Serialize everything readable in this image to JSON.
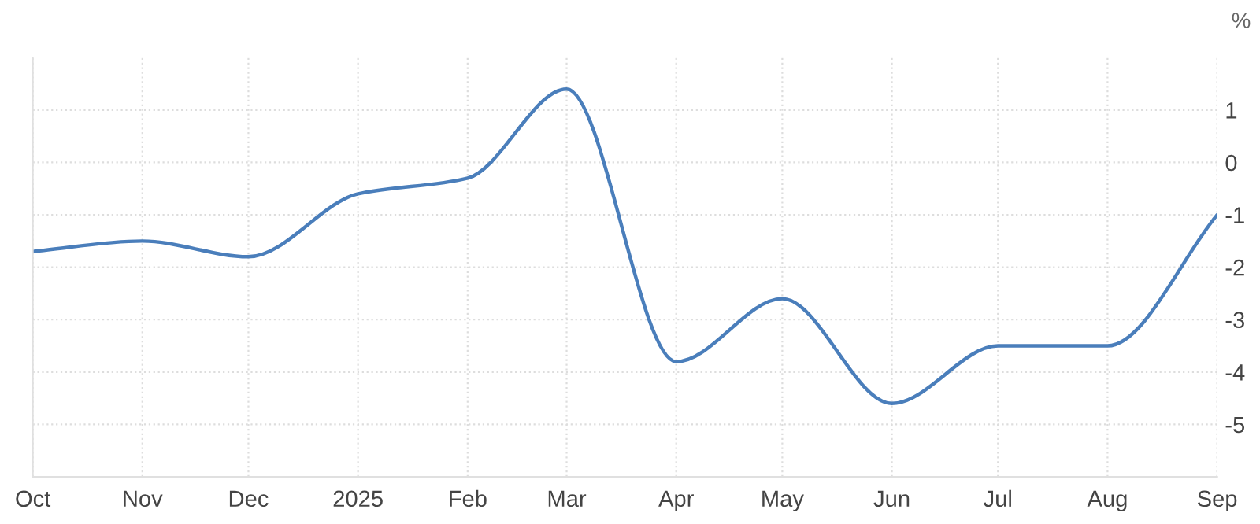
{
  "chart_data": {
    "type": "line",
    "ylabel": "%",
    "x": [
      "2024-10",
      "2024-11",
      "2024-12",
      "2025-01",
      "2025-02",
      "2025-03",
      "2025-04",
      "2025-05",
      "2025-06",
      "2025-07",
      "2025-08",
      "2025-09"
    ],
    "series": [
      {
        "color": "#4a7ebb",
        "values": [
          -1.7,
          -1.5,
          -1.8,
          -0.6,
          -0.3,
          1.4,
          -3.8,
          -2.6,
          -4.6,
          -3.5,
          -3.5,
          -1.0
        ]
      }
    ],
    "xlim": [
      "2024-10",
      "2025-09"
    ],
    "xticks": [
      {
        "value": "2024-10",
        "label": "Oct"
      },
      {
        "value": "2024-11",
        "label": "Nov"
      },
      {
        "value": "2024-12",
        "label": "Dec"
      },
      {
        "value": "2025-01",
        "label": "2025"
      },
      {
        "value": "2025-02",
        "label": "Feb"
      },
      {
        "value": "2025-03",
        "label": "Mar"
      },
      {
        "value": "2025-04",
        "label": "Apr"
      },
      {
        "value": "2025-05",
        "label": "May"
      },
      {
        "value": "2025-06",
        "label": "Jun"
      },
      {
        "value": "2025-07",
        "label": "Jul"
      },
      {
        "value": "2025-08",
        "label": "Aug"
      },
      {
        "value": "2025-09",
        "label": "Sep"
      }
    ],
    "ylim": [
      -6,
      2
    ],
    "yticks": [
      1,
      0,
      -1,
      -2,
      -3,
      -4,
      -5
    ],
    "grid": true,
    "legend": false,
    "marker": "none",
    "line_style": "solid"
  }
}
